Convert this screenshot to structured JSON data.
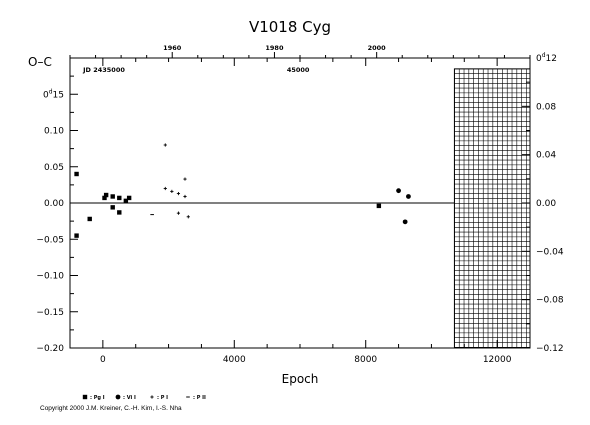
{
  "chart_data": {
    "type": "scatter",
    "title": "V1018  Cyg",
    "xlabel": "Epoch",
    "ylabel": "O–C",
    "xlim": [
      -1000,
      13000
    ],
    "ylim": [
      -0.2,
      0.2
    ],
    "y_right_lim": [
      -0.12,
      0.12
    ],
    "top_axis_lim": [
      1940,
      2030
    ],
    "x_ticks": [
      {
        "v": 0,
        "label": "0"
      },
      {
        "v": 4000,
        "label": "4000"
      },
      {
        "v": 8000,
        "label": "8000"
      },
      {
        "v": 12000,
        "label": "12000"
      }
    ],
    "y_ticks": [
      {
        "v": 0.15,
        "label": "0.15",
        "sup": "d"
      },
      {
        "v": 0.1,
        "label": "0.10"
      },
      {
        "v": 0.05,
        "label": "0.05"
      },
      {
        "v": 0.0,
        "label": "0.00"
      },
      {
        "v": -0.05,
        "label": "−0.05"
      },
      {
        "v": -0.1,
        "label": "−0.10"
      },
      {
        "v": -0.15,
        "label": "−0.15"
      },
      {
        "v": -0.2,
        "label": "−0.20"
      }
    ],
    "y_right_ticks": [
      {
        "v": 0.12,
        "label": "0.12",
        "sup": "d"
      },
      {
        "v": 0.08,
        "label": "0.08"
      },
      {
        "v": 0.04,
        "label": "0.04"
      },
      {
        "v": 0.0,
        "label": "0.00"
      },
      {
        "v": -0.04,
        "label": "−0.04"
      },
      {
        "v": -0.08,
        "label": "−0.08"
      },
      {
        "v": -0.12,
        "label": "−0.12"
      }
    ],
    "top_ticks": [
      {
        "v": 1960,
        "label": "1960"
      },
      {
        "v": 1980,
        "label": "1980"
      },
      {
        "v": 2000,
        "label": "2000"
      }
    ],
    "jd_labels": [
      {
        "x": -600,
        "text": "JD 2435000"
      },
      {
        "x": 5600,
        "text": "45000"
      }
    ],
    "future_region_start": 10700,
    "series": [
      {
        "name": ": Pg I",
        "marker": "square",
        "points": [
          [
            -800,
            0.04
          ],
          [
            -800,
            -0.045
          ],
          [
            -400,
            -0.022
          ],
          [
            50,
            0.007
          ],
          [
            100,
            0.011
          ],
          [
            300,
            0.009
          ],
          [
            300,
            -0.006
          ],
          [
            500,
            0.007
          ],
          [
            500,
            -0.013
          ],
          [
            700,
            0.003
          ],
          [
            800,
            0.007
          ],
          [
            8400,
            -0.004
          ]
        ]
      },
      {
        "name": ": Vi I",
        "marker": "circle",
        "points": [
          [
            9000,
            0.017
          ],
          [
            9200,
            -0.026
          ],
          [
            9300,
            0.009
          ]
        ]
      },
      {
        "name": ": P I",
        "marker": "plus",
        "points": [
          [
            1900,
            0.08
          ],
          [
            1900,
            0.02
          ],
          [
            2100,
            0.016
          ],
          [
            2300,
            0.013
          ],
          [
            2300,
            -0.014
          ],
          [
            2500,
            0.033
          ],
          [
            2500,
            0.009
          ],
          [
            2600,
            -0.019
          ]
        ]
      },
      {
        "name": ": P II",
        "marker": "dash",
        "points": [
          [
            1500,
            -0.016
          ]
        ]
      }
    ]
  },
  "copyright": "Copyright 2000 J.M. Kreiner, C.-H. Kim, I.-S. Nha"
}
